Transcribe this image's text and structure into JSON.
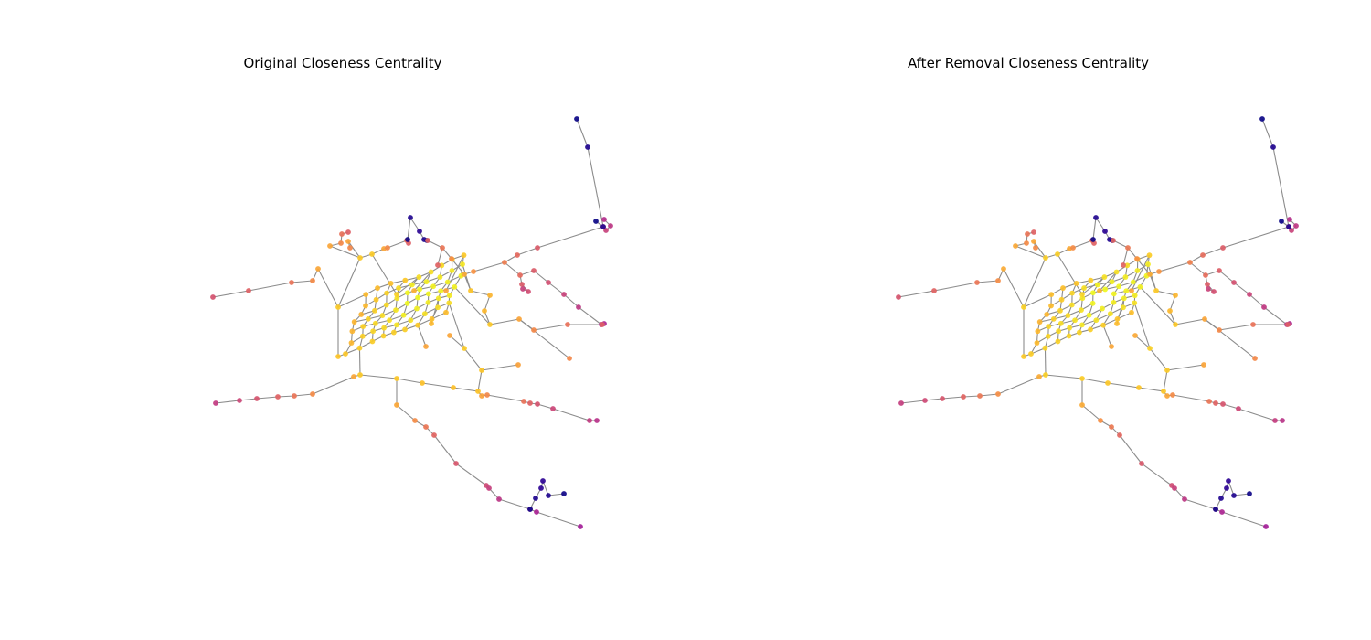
{
  "figure": {
    "panels": [
      {
        "title": "Original Closeness Centrality"
      },
      {
        "title": "After Removal Closeness Centrality"
      }
    ],
    "edge_color": "#8c8c8c",
    "colormap": "plasma"
  }
}
